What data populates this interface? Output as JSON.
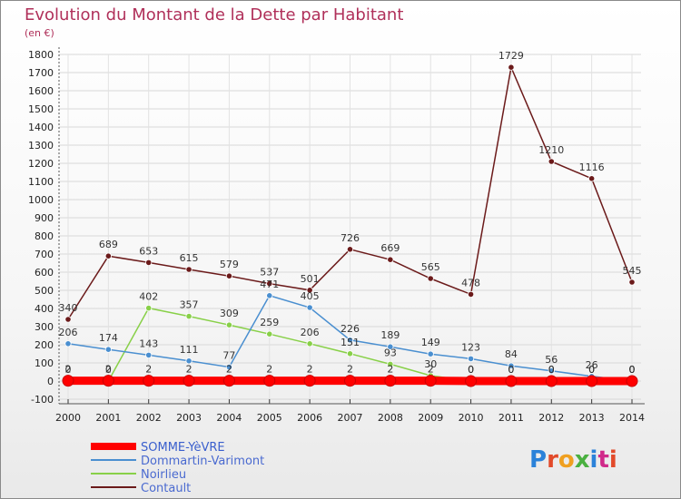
{
  "chart_data": {
    "type": "line",
    "title": "Evolution du Montant de la Dette par Habitant",
    "subtitle": "(en €)",
    "x": [
      "2000",
      "2001",
      "2002",
      "2003",
      "2004",
      "2005",
      "2006",
      "2007",
      "2008",
      "2009",
      "2010",
      "2011",
      "2012",
      "2013",
      "2014"
    ],
    "ylim": [
      -100,
      1800
    ],
    "yticks": [
      -100,
      0,
      100,
      200,
      300,
      400,
      500,
      600,
      700,
      800,
      900,
      1000,
      1100,
      1200,
      1300,
      1400,
      1500,
      1600,
      1700,
      1800
    ],
    "grid": true,
    "legend_position": "bottom-left",
    "series": [
      {
        "name": "SOMME-YèVRE",
        "color": "#ff0000",
        "values": [
          2,
          2,
          2,
          2,
          2,
          2,
          2,
          2,
          2,
          2,
          0,
          0,
          0,
          0,
          0
        ],
        "labels": [
          "2",
          "2",
          "2",
          "2",
          "2",
          "2",
          "2",
          "2",
          "2",
          "2",
          "0",
          "0",
          "0",
          "0",
          "0"
        ]
      },
      {
        "name": "Dommartin-Varimont",
        "color": "#4a8fd0",
        "values": [
          206,
          174,
          143,
          111,
          77,
          471,
          405,
          226,
          189,
          149,
          123,
          84,
          56,
          26,
          0
        ],
        "labels": [
          "206",
          "174",
          "143",
          "111",
          "77",
          "471",
          "405",
          "226",
          "189",
          "149",
          "123",
          "84",
          "56",
          "26",
          "0"
        ]
      },
      {
        "name": "Noirlieu",
        "color": "#88d048",
        "values": [
          0,
          0,
          402,
          357,
          309,
          259,
          206,
          151,
          93,
          30,
          0,
          0,
          0,
          0,
          0
        ],
        "labels": [
          "0",
          "0",
          "402",
          "357",
          "309",
          "259",
          "206",
          "151",
          "93",
          "30",
          "0",
          "0",
          "0",
          "0",
          "0"
        ]
      },
      {
        "name": "Contault",
        "color": "#6b1a1a",
        "values": [
          340,
          689,
          653,
          615,
          579,
          537,
          501,
          726,
          669,
          565,
          478,
          1729,
          1210,
          1116,
          545
        ],
        "labels": [
          "340",
          "689",
          "653",
          "615",
          "579",
          "537",
          "501",
          "726",
          "669",
          "565",
          "478",
          "1729",
          "1210",
          "1116",
          "545"
        ]
      }
    ]
  },
  "logo": {
    "text": "Proxiti"
  }
}
